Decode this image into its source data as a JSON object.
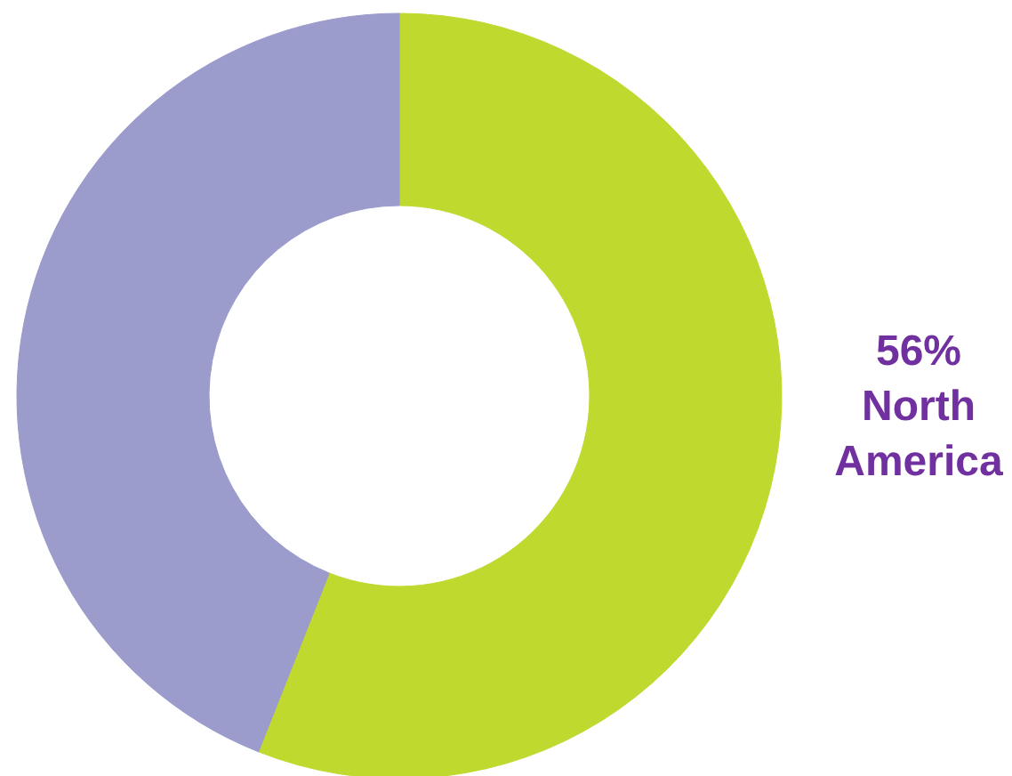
{
  "chart_data": {
    "type": "donut",
    "categories": [
      "North America",
      null
    ],
    "values": [
      56,
      44
    ],
    "colors": [
      "#c0d92f",
      "#9b9bcc"
    ],
    "value_labels": [
      "56%",
      null
    ]
  }
}
